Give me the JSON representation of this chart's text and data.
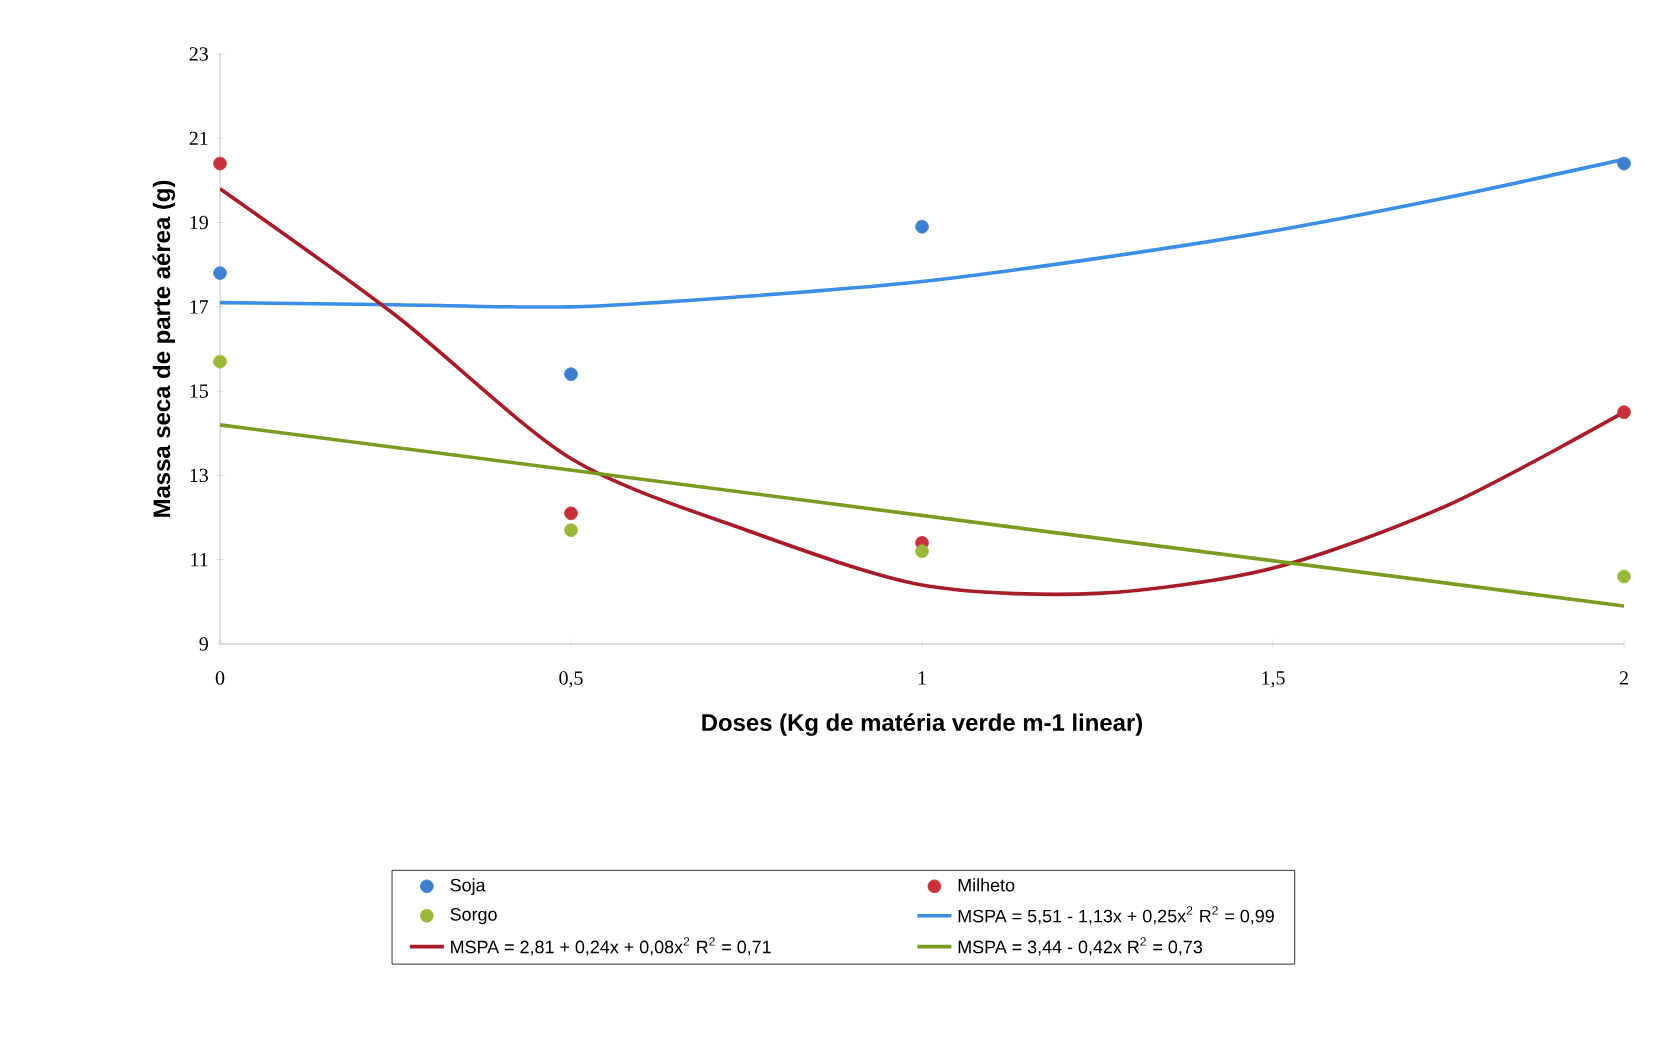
{
  "chart_data": {
    "type": "scatter",
    "xlabel": "Doses (Kg de matéria verde m-1 linear)",
    "ylabel": "Massa seca de parte aérea (g)",
    "xlim": [
      0,
      2
    ],
    "ylim": [
      9,
      23
    ],
    "xticks": [
      0,
      {
        "value": 0.5,
        "label": "0,5"
      },
      1,
      {
        "value": 1.5,
        "label": "1,5"
      },
      2
    ],
    "yticks": [
      9,
      11,
      13,
      15,
      17,
      19,
      21,
      23
    ],
    "grid": false,
    "legend": "bottom",
    "marker": "circle",
    "series": [
      {
        "name": "Soja",
        "color": "#3f7fd0",
        "x": [
          0,
          0.5,
          1,
          2
        ],
        "values": [
          17.8,
          15.4,
          18.9,
          20.4
        ]
      },
      {
        "name": "Milheto",
        "color": "#c8303a",
        "x": [
          0,
          0.5,
          1,
          2
        ],
        "values": [
          20.4,
          12.1,
          11.4,
          14.5
        ]
      },
      {
        "name": "Sorgo",
        "color": "#9ab83a",
        "x": [
          0,
          0.5,
          1,
          2
        ],
        "values": [
          15.7,
          11.7,
          11.2,
          10.6
        ]
      },
      {
        "name": "MSPA = 5,51 - 1,13x + 0,25x$^{2}$   R$^{2}$ = 0,99",
        "type": "line",
        "marker": "none",
        "color": "#3a8ee6",
        "x": [
          0,
          0.25,
          0.5,
          0.75,
          1,
          1.25,
          1.5,
          1.75,
          2
        ],
        "values": [
          17.1,
          17.05,
          17.0,
          17.25,
          17.6,
          18.15,
          18.8,
          19.6,
          20.5
        ]
      },
      {
        "name": "MSPA = 2,81 + 0,24x + 0,08x$^{2}$   R$^{2}$ = 0,71",
        "type": "line",
        "marker": "none",
        "color": "#a81c2a",
        "x": [
          0,
          0.25,
          0.5,
          0.75,
          1,
          1.25,
          1.5,
          1.75,
          2
        ],
        "values": [
          19.8,
          16.8,
          13.4,
          11.7,
          10.4,
          10.2,
          10.8,
          12.3,
          14.5
        ]
      },
      {
        "name": "MSPA = 3,44 - 0,42x   R$^{2}$ = 0,73",
        "type": "line",
        "marker": "none",
        "color": "#7a9a20",
        "x": [
          0,
          2
        ],
        "values": [
          14.2,
          9.9
        ]
      }
    ]
  }
}
